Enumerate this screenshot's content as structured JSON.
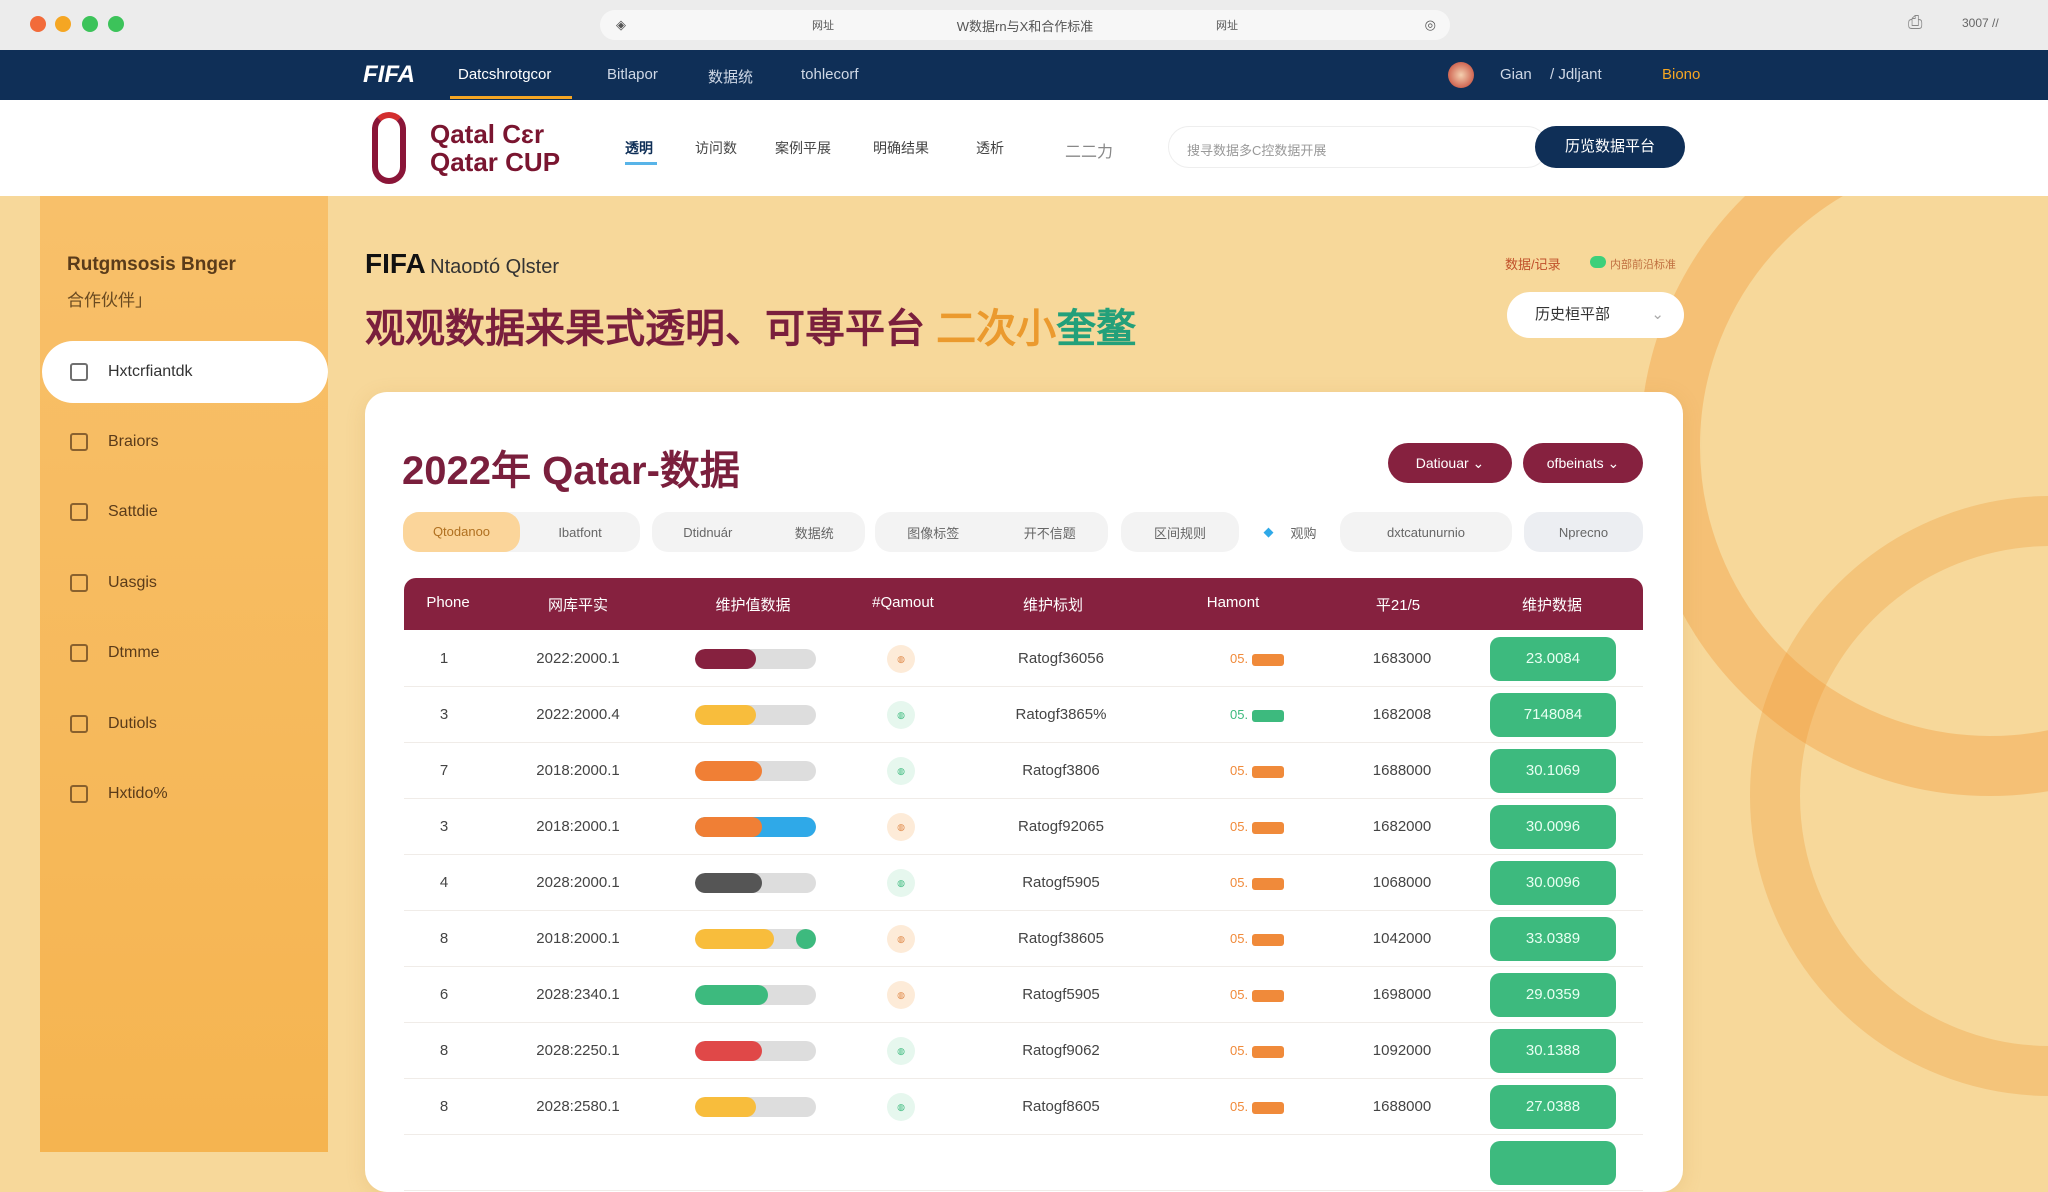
{
  "browser": {
    "address": "W数据rn与X和合作标准",
    "address_left": "网址",
    "address_right": "网址",
    "clock": "3007 //"
  },
  "colors": {
    "navy": "#0f2f57",
    "maroon": "#86213f",
    "sidebar": "#f6b95a",
    "background": "#f7d89a",
    "green": "#3dba7e"
  },
  "topnav": {
    "logo": "FIFA",
    "items": [
      "Datcshrotgcor",
      "Bitlapor",
      "数据统",
      "tohlecorf"
    ],
    "user": "Gian",
    "link": "/ Jdljant",
    "extra": "Biono"
  },
  "header": {
    "logo_line1": "Qatal Cɛr",
    "logo_line2": "Qatar CUP",
    "nav": [
      "透明",
      "访问数",
      "案例平展",
      "明确结果",
      "透析",
      "二二力"
    ],
    "search_placeholder": "搜寻数据多C控数据开展",
    "search_button": "历览数据平台"
  },
  "sidebar": {
    "title": "Rutgmsosis Bnger",
    "subtitle": "合作伙伴」",
    "items": [
      {
        "label": "Hxtcrfiantdk",
        "icon": "users-icon"
      },
      {
        "label": "Braiors",
        "icon": "document-icon"
      },
      {
        "label": "Sattdie",
        "icon": "calendar-icon"
      },
      {
        "label": "Uasgis",
        "icon": "table-icon"
      },
      {
        "label": "Dtmme",
        "icon": "chart-icon"
      },
      {
        "label": "Dutiols",
        "icon": "lock-icon"
      },
      {
        "label": "Hxtido%",
        "icon": "folder-icon"
      }
    ]
  },
  "hero": {
    "brand": "FIFA",
    "brand_sub": "Ntaoᴅtó Qlster",
    "title_main": "观观数据来果式透明、可専平台",
    "title_orange": "二次小",
    "title_green": "奎鳌",
    "tag_red": "数据/记录",
    "tag_green": "内部前沿标准",
    "history_select": "历史桓平部"
  },
  "card": {
    "title": "2022年 Qatar-数据",
    "btn1": "Datiouar",
    "btn2": "ofbeinats",
    "filters": [
      "Qtodanoo",
      "Ibatfont",
      "Dtidnuár",
      "数据统",
      "图像标签",
      "开不信题",
      "区间规则",
      "观购",
      "dxtcatunurnio",
      "Nprecno"
    ]
  },
  "table": {
    "headers": [
      "Phone",
      "网库平实",
      "维护值数据",
      "#Qamout",
      "维护标划",
      "Hamont",
      "平21/5",
      "维护数据"
    ],
    "rows": [
      {
        "id": "1",
        "date": "2022:2000.1",
        "progress": 0.5,
        "bar_color": "#86213f",
        "chip": "peach",
        "rating": "Ratogf36056",
        "badge": "orange",
        "amount": "1683000",
        "value": "23.0084"
      },
      {
        "id": "3",
        "date": "2022:2000.4",
        "progress": 0.5,
        "bar_color": "#f8bd3c",
        "chip": "green",
        "rating": "Ratogf3865%",
        "badge": "green",
        "amount": "1682008",
        "value": "7148084"
      },
      {
        "id": "7",
        "date": "2018:2000.1",
        "progress": 0.55,
        "bar_color": "#f07f35",
        "chip": "green",
        "rating": "Ratogf3806",
        "badge": "orange",
        "amount": "1688000",
        "value": "30.1069"
      },
      {
        "id": "3",
        "date": "2018:2000.1",
        "progress": 0.55,
        "bar_color": "#f07f35",
        "bar_color2": "#2fa9e8",
        "chip": "peach",
        "rating": "Ratogf92065",
        "badge": "orange",
        "amount": "1682000",
        "value": "30.0096"
      },
      {
        "id": "4",
        "date": "2028:2000.1",
        "progress": 0.55,
        "bar_color": "#555555",
        "chip": "green",
        "rating": "Ratogf5905",
        "badge": "orange",
        "amount": "1068000",
        "value": "30.0096"
      },
      {
        "id": "8",
        "date": "2018:2000.1",
        "progress": 0.65,
        "bar_color": "#f8bd3c",
        "knob": "#3dba7e",
        "chip": "peach",
        "rating": "Ratogf38605",
        "badge": "orange",
        "amount": "1042000",
        "value": "33.0389"
      },
      {
        "id": "6",
        "date": "2028:2340.1",
        "progress": 0.6,
        "bar_color": "#3dba7e",
        "chip": "peach",
        "rating": "Ratogf5905",
        "badge": "orange",
        "amount": "1698000",
        "value": "29.0359"
      },
      {
        "id": "8",
        "date": "2028:2250.1",
        "progress": 0.55,
        "bar_color": "#e04848",
        "chip": "green",
        "rating": "Ratogf9062",
        "badge": "orange",
        "amount": "1092000",
        "value": "30.1388"
      },
      {
        "id": "8",
        "date": "2028:2580.1",
        "progress": 0.5,
        "bar_color": "#f8bd3c",
        "chip": "green",
        "rating": "Ratogf8605",
        "badge": "orange",
        "amount": "1688000",
        "value": "27.0388"
      }
    ],
    "badge_text": "05."
  }
}
